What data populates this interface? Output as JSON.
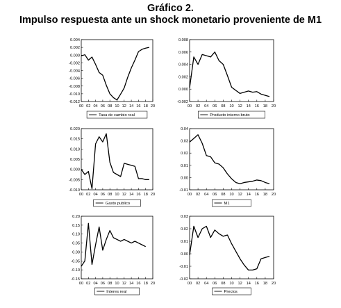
{
  "title": "Gráfico 2.",
  "subtitle": "Impulso respuesta ante un shock monetario proveniente de M1",
  "chart_data": [
    {
      "type": "line",
      "series": [
        {
          "name": "Tasa de cambio real",
          "values": [
            -0.0002,
            0.0001,
            -0.0013,
            -0.0005,
            -0.0024,
            -0.0045,
            -0.0052,
            -0.0078,
            -0.01,
            -0.011,
            -0.0116,
            -0.0101,
            -0.0085,
            -0.0057,
            -0.0033,
            -0.0013,
            0.0009,
            0.0015,
            0.0018,
            0.002
          ]
        }
      ],
      "x": [
        "00",
        "01",
        "02",
        "03",
        "04",
        "05",
        "06",
        "07",
        "08",
        "09",
        "10",
        "11",
        "12",
        "13",
        "14",
        "15",
        "16",
        "17",
        "18",
        "19"
      ],
      "xticks": [
        "00",
        "02",
        "04",
        "06",
        "08",
        "10",
        "12",
        "14",
        "16",
        "18",
        "20"
      ],
      "yticks": [
        "0.004",
        "0.002",
        "0.000",
        "-0.002",
        "-0.004",
        "-0.006",
        "-0.008",
        "-0.010",
        "-0.012"
      ],
      "ylim": [
        -0.012,
        0.004
      ]
    },
    {
      "type": "line",
      "series": [
        {
          "name": "Producto interno bruto",
          "values": [
            0.0002,
            0.0052,
            0.004,
            0.0056,
            0.0054,
            0.0052,
            0.006,
            0.0046,
            0.004,
            0.0022,
            0.0003,
            -0.0002,
            -0.0007,
            -0.0005,
            -0.0003,
            -0.0005,
            -0.0004,
            -0.0008,
            -0.001,
            -0.0012
          ]
        }
      ],
      "x": [
        "00",
        "01",
        "02",
        "03",
        "04",
        "05",
        "06",
        "07",
        "08",
        "09",
        "10",
        "11",
        "12",
        "13",
        "14",
        "15",
        "16",
        "17",
        "18",
        "19"
      ],
      "xticks": [
        "00",
        "02",
        "04",
        "06",
        "08",
        "10",
        "12",
        "14",
        "16",
        "18",
        "20"
      ],
      "yticks": [
        "0.008",
        "0.006",
        "0.004",
        "0.002",
        "0.000",
        "-0.002"
      ],
      "ylim": [
        -0.002,
        0.008
      ]
    },
    {
      "type": "line",
      "series": [
        {
          "name": "Gasto publico",
          "values": [
            0.0,
            -0.0025,
            -0.001,
            -0.0095,
            0.0125,
            0.016,
            0.0135,
            0.0175,
            0.0035,
            -0.0015,
            -0.0025,
            -0.0035,
            0.003,
            0.0025,
            0.002,
            0.0015,
            -0.0045,
            -0.0045,
            -0.005,
            -0.005
          ]
        }
      ],
      "x": [
        "00",
        "01",
        "02",
        "03",
        "04",
        "05",
        "06",
        "07",
        "08",
        "09",
        "10",
        "11",
        "12",
        "13",
        "14",
        "15",
        "16",
        "17",
        "18",
        "19"
      ],
      "xticks": [
        "00",
        "02",
        "04",
        "06",
        "08",
        "10",
        "12",
        "14",
        "16",
        "18",
        "20"
      ],
      "yticks": [
        "0.020",
        "0.015",
        "0.010",
        "0.005",
        "0.000",
        "-0.005",
        "-0.010"
      ],
      "ylim": [
        -0.01,
        0.02
      ]
    },
    {
      "type": "line",
      "series": [
        {
          "name": "M1",
          "values": [
            0.029,
            0.032,
            0.035,
            0.028,
            0.018,
            0.017,
            0.012,
            0.011,
            0.008,
            0.003,
            -0.001,
            -0.004,
            -0.005,
            -0.004,
            -0.0035,
            -0.003,
            -0.002,
            -0.0025,
            -0.004,
            -0.005
          ]
        }
      ],
      "x": [
        "00",
        "01",
        "02",
        "03",
        "04",
        "05",
        "06",
        "07",
        "08",
        "09",
        "10",
        "11",
        "12",
        "13",
        "14",
        "15",
        "16",
        "17",
        "18",
        "19"
      ],
      "xticks": [
        "00",
        "02",
        "04",
        "06",
        "08",
        "10",
        "12",
        "14",
        "16",
        "18",
        "20"
      ],
      "yticks": [
        "0.04",
        "0.03",
        "0.02",
        "0.01",
        "0.00",
        "-0.01"
      ],
      "ylim": [
        -0.01,
        0.04
      ]
    },
    {
      "type": "line",
      "series": [
        {
          "name": "Interes real",
          "values": [
            -0.08,
            -0.05,
            0.16,
            -0.07,
            0.04,
            0.14,
            0.01,
            0.07,
            0.12,
            0.08,
            0.07,
            0.06,
            0.07,
            0.06,
            0.05,
            0.06,
            0.05,
            0.04,
            0.03
          ]
        }
      ],
      "x": [
        "00",
        "01",
        "02",
        "03",
        "04",
        "05",
        "06",
        "07",
        "08",
        "09",
        "10",
        "11",
        "12",
        "13",
        "14",
        "15",
        "16",
        "17",
        "18"
      ],
      "xticks": [
        "00",
        "02",
        "04",
        "06",
        "08",
        "10",
        "12",
        "14",
        "16",
        "18",
        "20"
      ],
      "yticks": [
        "0.20",
        "0.15",
        "0.10",
        "0.05",
        "0.00",
        "-0.05",
        "-0.10",
        "-0.15"
      ],
      "ylim": [
        -0.15,
        0.2
      ]
    },
    {
      "type": "line",
      "series": [
        {
          "name": "Precios",
          "values": [
            -0.001,
            0.022,
            0.013,
            0.02,
            0.022,
            0.013,
            0.019,
            0.016,
            0.014,
            0.015,
            0.008,
            0.002,
            -0.004,
            -0.009,
            -0.013,
            -0.013,
            -0.012,
            -0.004,
            -0.003,
            -0.002
          ]
        }
      ],
      "x": [
        "00",
        "01",
        "02",
        "03",
        "04",
        "05",
        "06",
        "07",
        "08",
        "09",
        "10",
        "11",
        "12",
        "13",
        "14",
        "15",
        "16",
        "17",
        "18",
        "19"
      ],
      "xticks": [
        "00",
        "02",
        "04",
        "06",
        "08",
        "10",
        "12",
        "14",
        "16",
        "18",
        "20"
      ],
      "yticks": [
        "0.03",
        "0.02",
        "0.01",
        "0.00",
        "-0.01",
        "-0.02"
      ],
      "ylim": [
        -0.02,
        0.03
      ]
    }
  ]
}
